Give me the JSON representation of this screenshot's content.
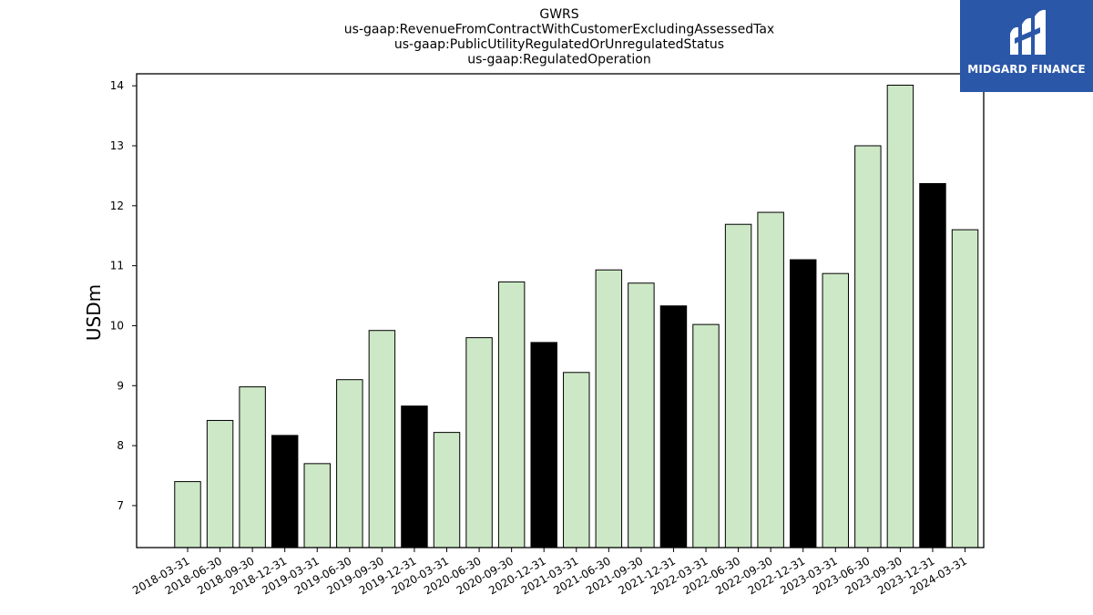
{
  "chart_data": {
    "type": "bar",
    "title_lines": [
      "GWRS",
      "us-gaap:RevenueFromContractWithCustomerExcludingAssessedTax",
      "us-gaap:PublicUtilityRegulatedOrUnregulatedStatus",
      "us-gaap:RegulatedOperation"
    ],
    "ylabel": "USDm",
    "xlabel": "",
    "ylim": [
      6.3,
      14.2
    ],
    "yticks": [
      7,
      8,
      9,
      10,
      11,
      12,
      13,
      14
    ],
    "categories": [
      "2018-03-31",
      "2018-06-30",
      "2018-09-30",
      "2018-12-31",
      "2019-03-31",
      "2019-06-30",
      "2019-09-30",
      "2019-12-31",
      "2020-03-31",
      "2020-06-30",
      "2020-09-30",
      "2020-12-31",
      "2021-03-31",
      "2021-06-30",
      "2021-09-30",
      "2021-12-31",
      "2022-03-31",
      "2022-06-30",
      "2022-09-30",
      "2022-12-31",
      "2023-03-31",
      "2023-06-30",
      "2023-09-30",
      "2023-12-31",
      "2024-03-31"
    ],
    "values": [
      7.4,
      8.42,
      8.98,
      8.17,
      7.7,
      9.1,
      9.92,
      8.66,
      8.22,
      9.8,
      10.73,
      9.72,
      9.22,
      10.93,
      10.71,
      10.33,
      10.02,
      11.69,
      11.89,
      11.1,
      10.87,
      13.0,
      14.01,
      12.37,
      11.6
    ],
    "highlight_quarter": "12-31",
    "colors": {
      "bar": "#cde8c6",
      "highlight": "#000000",
      "edge": "#000000"
    },
    "grid": false,
    "legend": "none"
  },
  "logo": {
    "text": "MIDGARD FINANCE",
    "icon": "midgard-logo-icon",
    "color": "#2b57a8"
  }
}
